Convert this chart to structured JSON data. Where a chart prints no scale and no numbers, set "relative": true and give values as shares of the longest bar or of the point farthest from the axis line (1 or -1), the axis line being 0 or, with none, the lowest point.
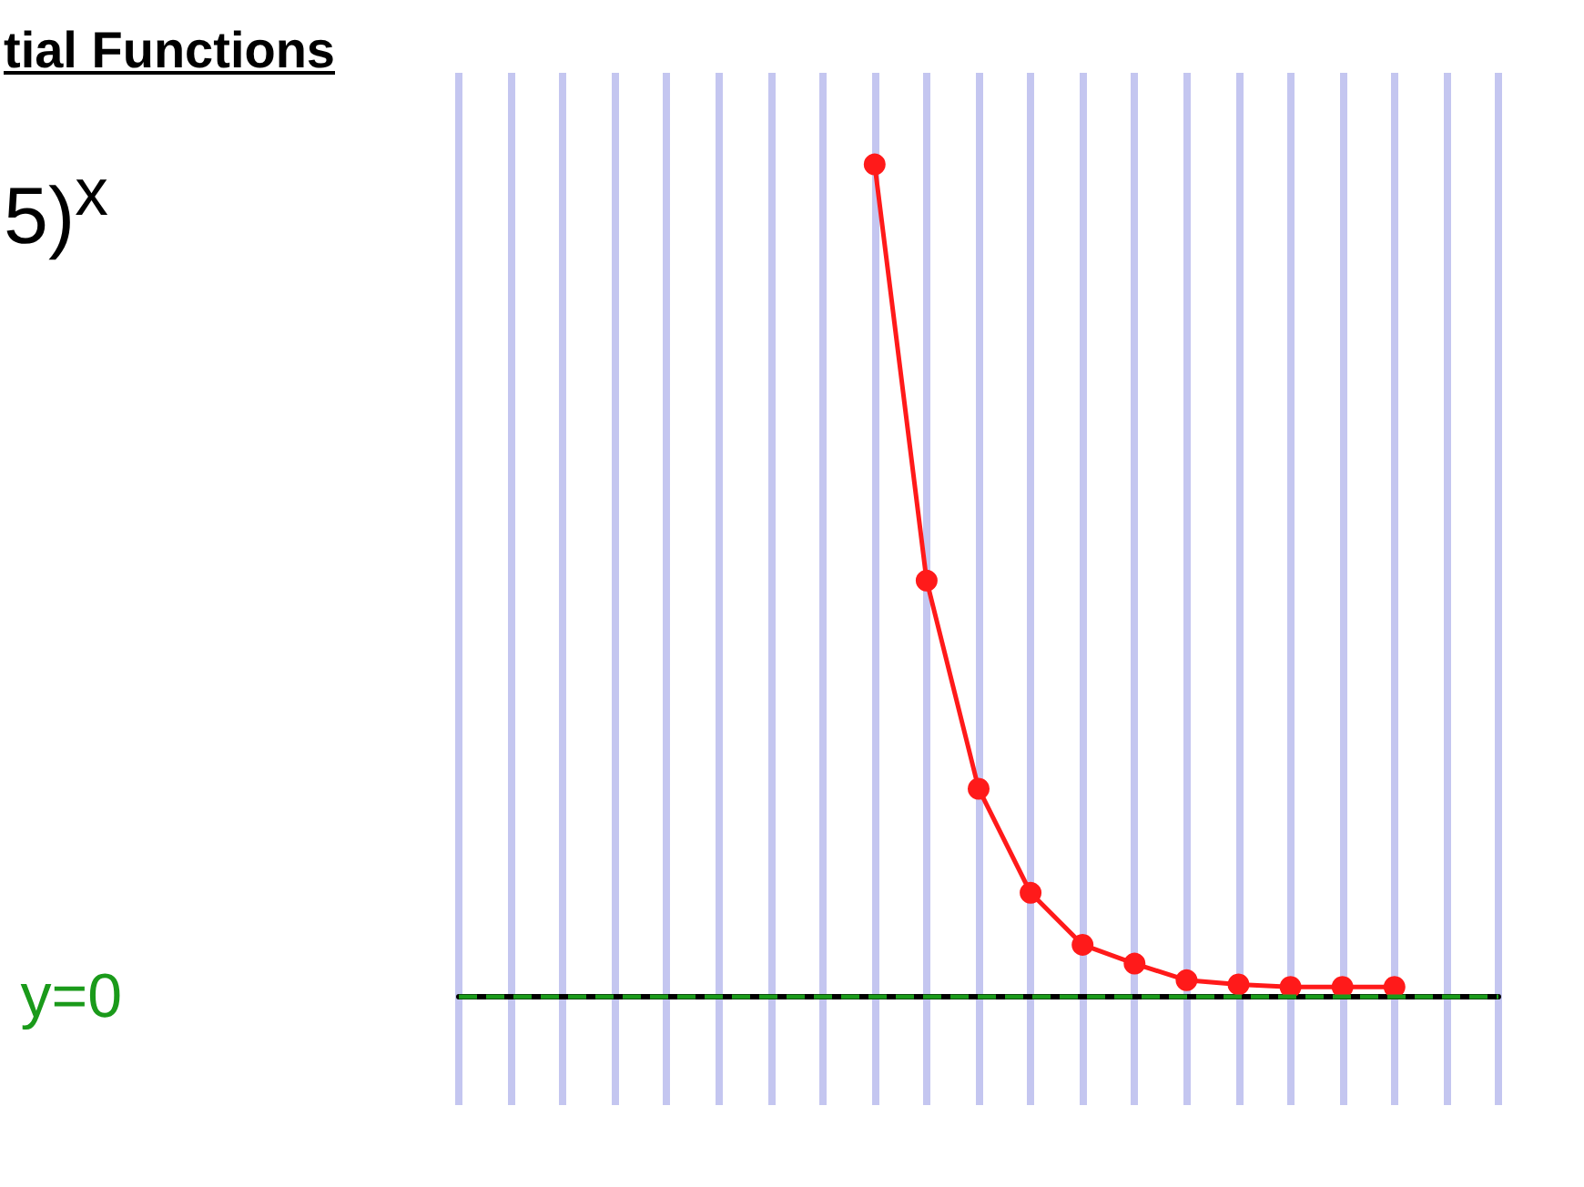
{
  "chart_data": {
    "type": "line",
    "title": "tial Functions",
    "annotations": [
      "5)$^{x}$"
    ],
    "categories": [
      null,
      null,
      null,
      null,
      null,
      null,
      null,
      null,
      null,
      null,
      null,
      null,
      null,
      null,
      null,
      null,
      null,
      null,
      null,
      null,
      null
    ],
    "series": [
      {
        "color": "#ff1a1a",
        "values": [
          null,
          null,
          null,
          null,
          null,
          null,
          null,
          null,
          1,
          0.5,
          0.25,
          0.125,
          0.0625,
          0.04,
          0.02,
          0.015,
          0.012,
          0.012,
          0.012,
          null,
          null
        ]
      }
    ],
    "marker": "circle",
    "relative": true,
    "grid": "x",
    "ref_lines": [
      {
        "axis": "y",
        "value": 0,
        "label": "y=0",
        "color": "#1a9a1a",
        "line_style": "dashed"
      }
    ]
  }
}
